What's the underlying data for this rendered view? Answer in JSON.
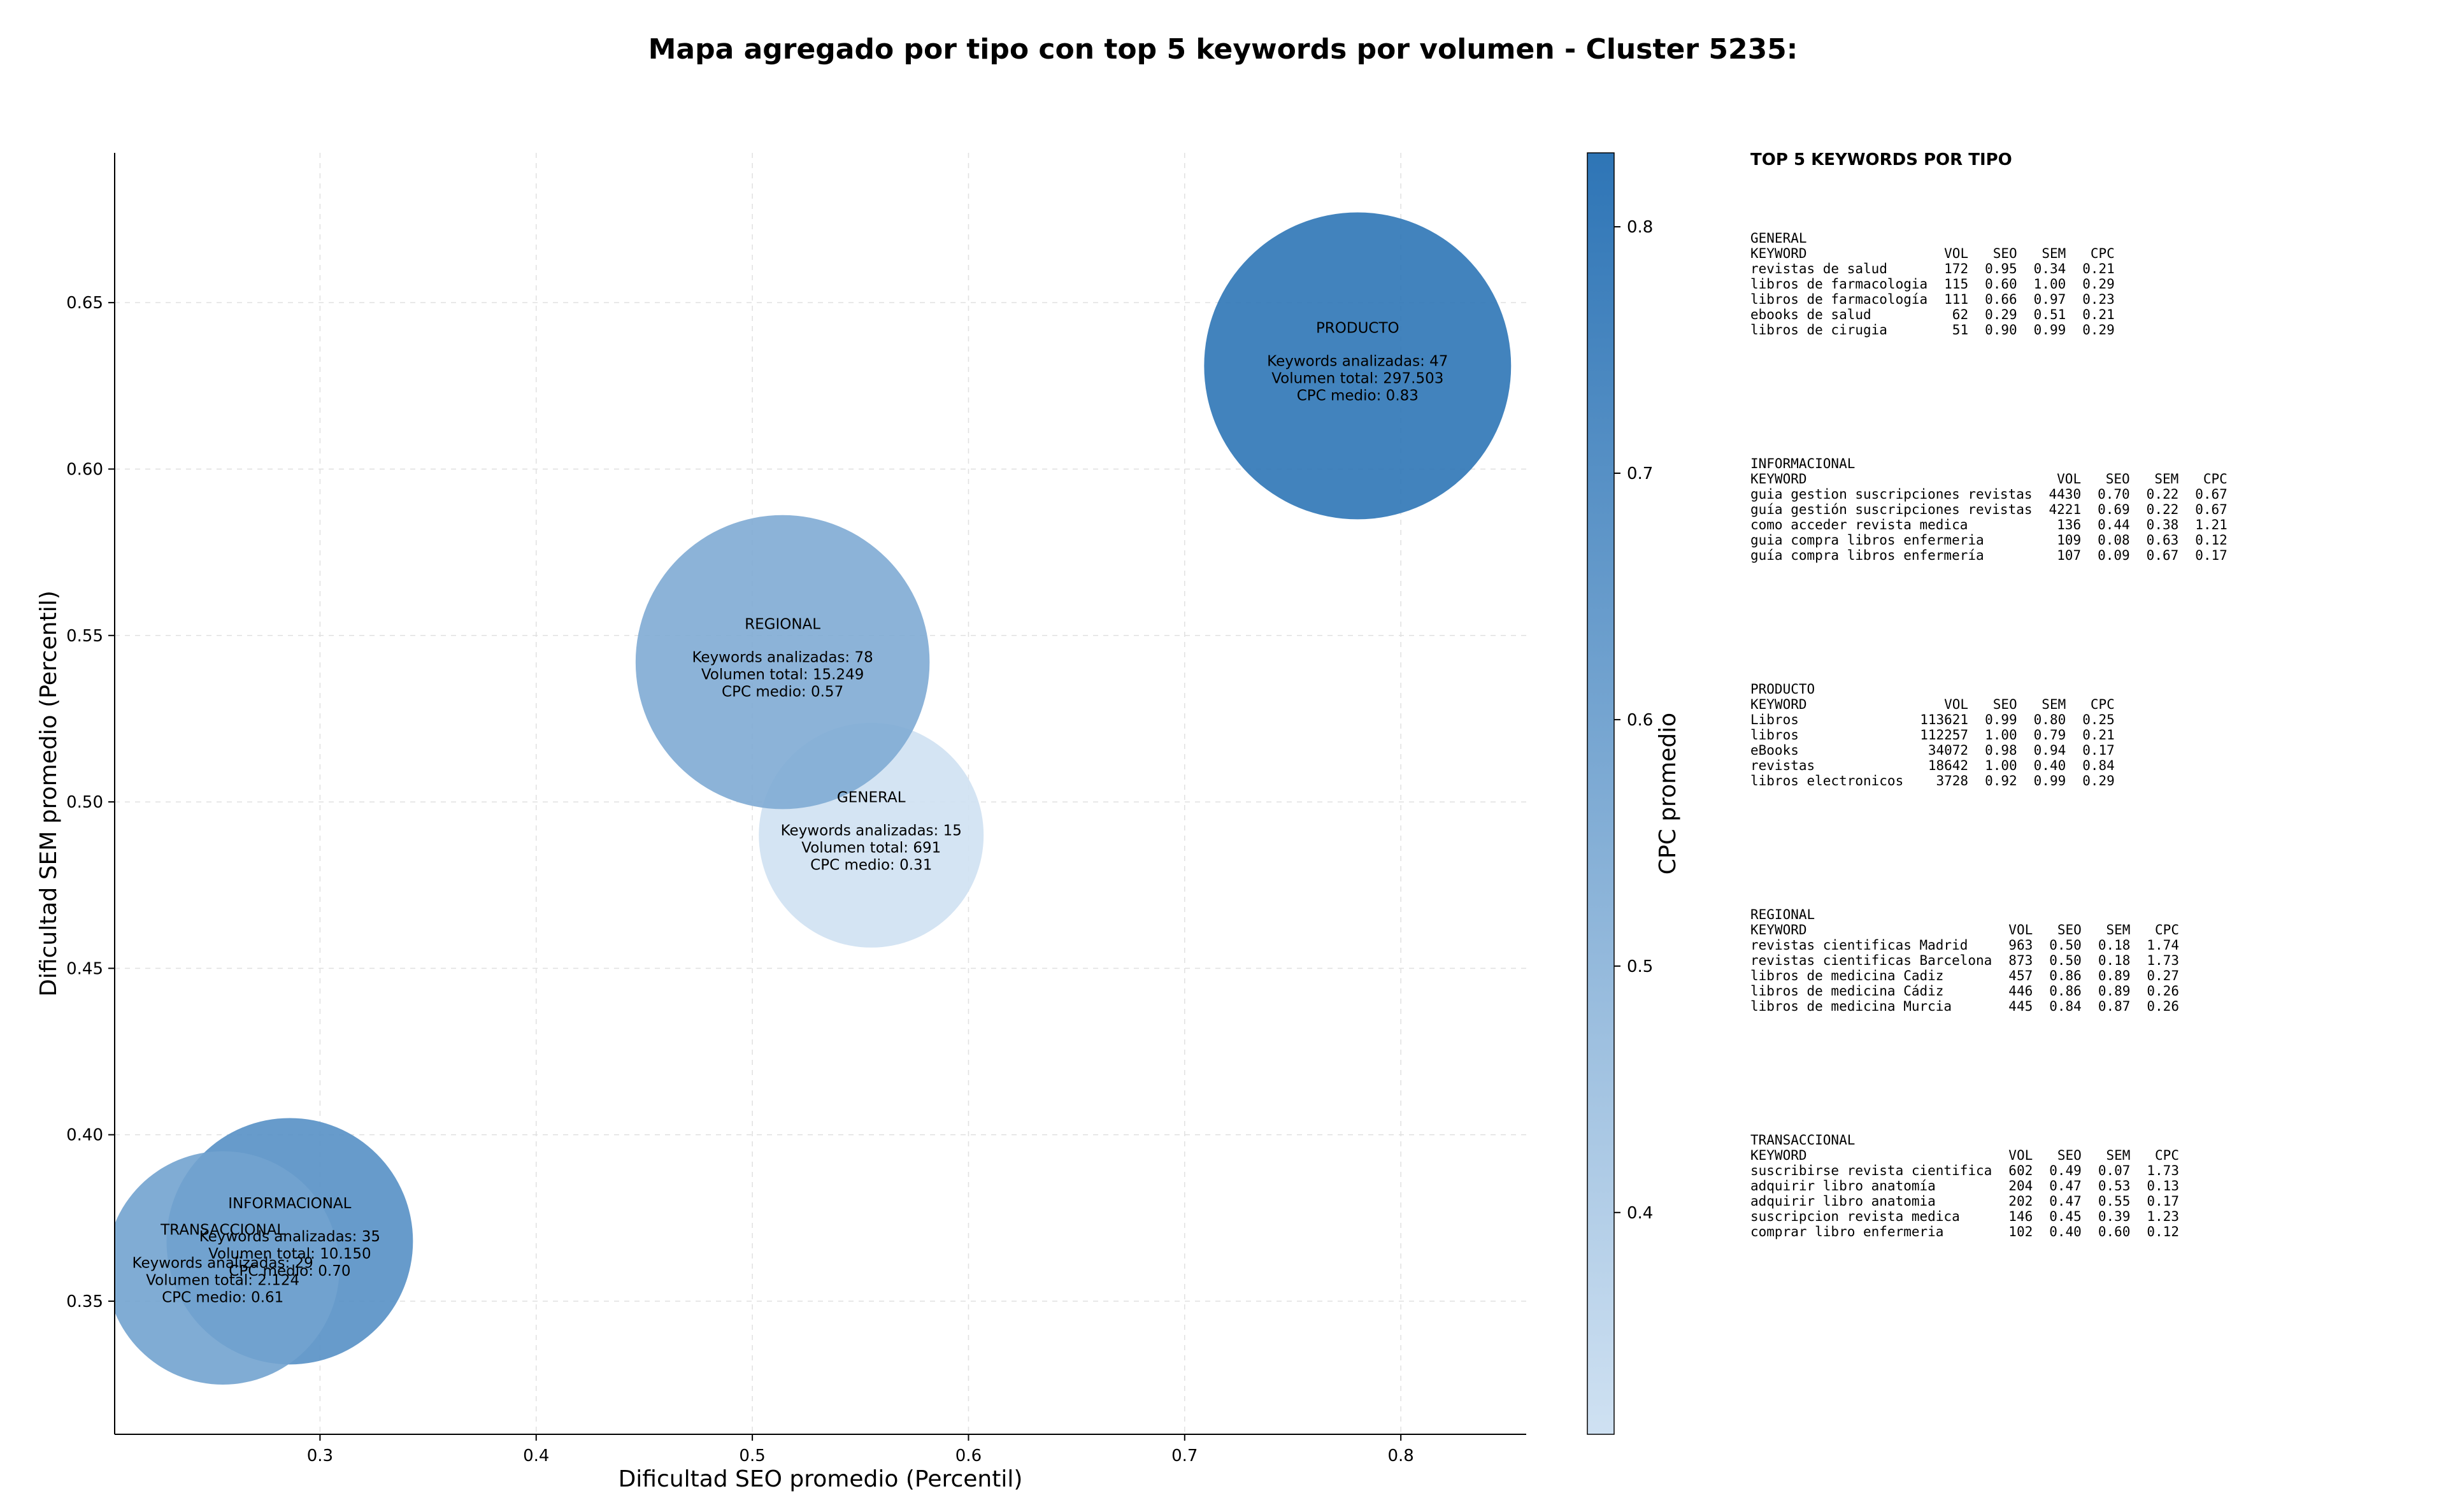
{
  "chart_data": {
    "type": "scatter",
    "title": "Mapa agregado por tipo con top 5 keywords por volumen - Cluster 5235:",
    "xlabel": "Dificultad SEO promedio (Percentil)",
    "ylabel": "Dificultad SEM promedio (Percentil)",
    "xlim": [
      0.205,
      0.858
    ],
    "ylim": [
      0.31,
      0.695
    ],
    "xticks": [
      0.3,
      0.4,
      0.5,
      0.6,
      0.7,
      0.8
    ],
    "yticks": [
      0.35,
      0.4,
      0.45,
      0.5,
      0.55,
      0.6,
      0.65
    ],
    "grid": true,
    "colorbar": {
      "label": "CPC promedio",
      "range": [
        0.31,
        0.83
      ],
      "ticks": [
        0.4,
        0.5,
        0.6,
        0.7,
        0.8
      ],
      "color_low": "#cfe1f2",
      "color_high": "#2e75b6"
    },
    "bubbles": [
      {
        "label": "INFORMACIONAL",
        "x": 0.286,
        "y": 0.368,
        "cpc": 0.7,
        "radius": 0.057,
        "line1": "Keywords analizadas: 35",
        "line2": "Volumen total: 10.150",
        "line3": "CPC medio: 0.70"
      },
      {
        "label": "TRANSACCIONAL",
        "x": 0.255,
        "y": 0.36,
        "cpc": 0.61,
        "radius": 0.054,
        "line1": "Keywords analizadas: 29",
        "line2": "Volumen total: 2.124",
        "line3": "CPC medio: 0.61"
      },
      {
        "label": "GENERAL",
        "x": 0.555,
        "y": 0.49,
        "cpc": 0.31,
        "radius": 0.052,
        "line1": "Keywords analizadas: 15",
        "line2": "Volumen total: 691",
        "line3": "CPC medio: 0.31"
      },
      {
        "label": "REGIONAL",
        "x": 0.514,
        "y": 0.542,
        "cpc": 0.57,
        "radius": 0.068,
        "line1": "Keywords analizadas: 78",
        "line2": "Volumen total: 15.249",
        "line3": "CPC medio: 0.57"
      },
      {
        "label": "PRODUCTO",
        "x": 0.78,
        "y": 0.631,
        "cpc": 0.83,
        "radius": 0.071,
        "line1": "Keywords analizadas: 47",
        "line2": "Volumen total: 297.503",
        "line3": "CPC medio: 0.83"
      }
    ]
  },
  "keyword_panel": {
    "title": "TOP 5 KEYWORDS POR TIPO",
    "columns": [
      "KEYWORD",
      "VOL",
      "SEO",
      "SEM",
      "CPC"
    ],
    "groups": [
      {
        "type": "GENERAL",
        "rows": [
          [
            "revistas de salud",
            "172",
            "0.95",
            "0.34",
            "0.21"
          ],
          [
            "libros de farmacologia",
            "115",
            "0.60",
            "1.00",
            "0.29"
          ],
          [
            "libros de farmacología",
            "111",
            "0.66",
            "0.97",
            "0.23"
          ],
          [
            "ebooks de salud",
            "62",
            "0.29",
            "0.51",
            "0.21"
          ],
          [
            "libros de cirugia",
            "51",
            "0.90",
            "0.99",
            "0.29"
          ]
        ]
      },
      {
        "type": "INFORMACIONAL",
        "rows": [
          [
            "guia gestion suscripciones revistas",
            "4430",
            "0.70",
            "0.22",
            "0.67"
          ],
          [
            "guía gestión suscripciones revistas",
            "4221",
            "0.69",
            "0.22",
            "0.67"
          ],
          [
            "como acceder revista medica",
            "136",
            "0.44",
            "0.38",
            "1.21"
          ],
          [
            "guia compra libros enfermeria",
            "109",
            "0.08",
            "0.63",
            "0.12"
          ],
          [
            "guía compra libros enfermería",
            "107",
            "0.09",
            "0.67",
            "0.17"
          ]
        ]
      },
      {
        "type": "PRODUCTO",
        "rows": [
          [
            "Libros",
            "113621",
            "0.99",
            "0.80",
            "0.25"
          ],
          [
            "libros",
            "112257",
            "1.00",
            "0.79",
            "0.21"
          ],
          [
            "eBooks",
            "34072",
            "0.98",
            "0.94",
            "0.17"
          ],
          [
            "revistas",
            "18642",
            "1.00",
            "0.40",
            "0.84"
          ],
          [
            "libros electronicos",
            "3728",
            "0.92",
            "0.99",
            "0.29"
          ]
        ]
      },
      {
        "type": "REGIONAL",
        "rows": [
          [
            "revistas cientificas Madrid",
            "963",
            "0.50",
            "0.18",
            "1.74"
          ],
          [
            "revistas cientificas Barcelona",
            "873",
            "0.50",
            "0.18",
            "1.73"
          ],
          [
            "libros de medicina Cadiz",
            "457",
            "0.86",
            "0.89",
            "0.27"
          ],
          [
            "libros de medicina Cádiz",
            "446",
            "0.86",
            "0.89",
            "0.26"
          ],
          [
            "libros de medicina Murcia",
            "445",
            "0.84",
            "0.87",
            "0.26"
          ]
        ]
      },
      {
        "type": "TRANSACCIONAL",
        "rows": [
          [
            "suscribirse revista cientifica",
            "602",
            "0.49",
            "0.07",
            "1.73"
          ],
          [
            "adquirir libro anatomía",
            "204",
            "0.47",
            "0.53",
            "0.13"
          ],
          [
            "adquirir libro anatomia",
            "202",
            "0.47",
            "0.55",
            "0.17"
          ],
          [
            "suscripcion revista medica",
            "146",
            "0.45",
            "0.39",
            "1.23"
          ],
          [
            "comprar libro enfermeria",
            "102",
            "0.40",
            "0.60",
            "0.12"
          ]
        ]
      }
    ]
  }
}
